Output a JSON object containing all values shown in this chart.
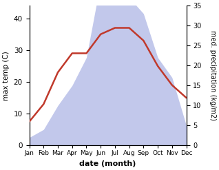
{
  "months": [
    "Jan",
    "Feb",
    "Mar",
    "Apr",
    "May",
    "Jun",
    "Jul",
    "Aug",
    "Sep",
    "Oct",
    "Nov",
    "Dec"
  ],
  "temperature": [
    7.5,
    13,
    23,
    29,
    29,
    35,
    37,
    37,
    33,
    25,
    19,
    15
  ],
  "precipitation": [
    2,
    4,
    10,
    15,
    22,
    41,
    37,
    37,
    33,
    22,
    17,
    5
  ],
  "temp_ylim": [
    0,
    44
  ],
  "precip_ylim": [
    0,
    35
  ],
  "temp_yticks": [
    0,
    10,
    20,
    30,
    40
  ],
  "precip_yticks": [
    0,
    5,
    10,
    15,
    20,
    25,
    30,
    35
  ],
  "temp_color": "#c0392b",
  "precip_fill_color": "#b8bfe8",
  "xlabel": "date (month)",
  "ylabel_left": "max temp (C)",
  "ylabel_right": "med. precipitation (kg/m2)",
  "background_color": "#ffffff",
  "figsize": [
    3.18,
    2.47
  ],
  "dpi": 100
}
